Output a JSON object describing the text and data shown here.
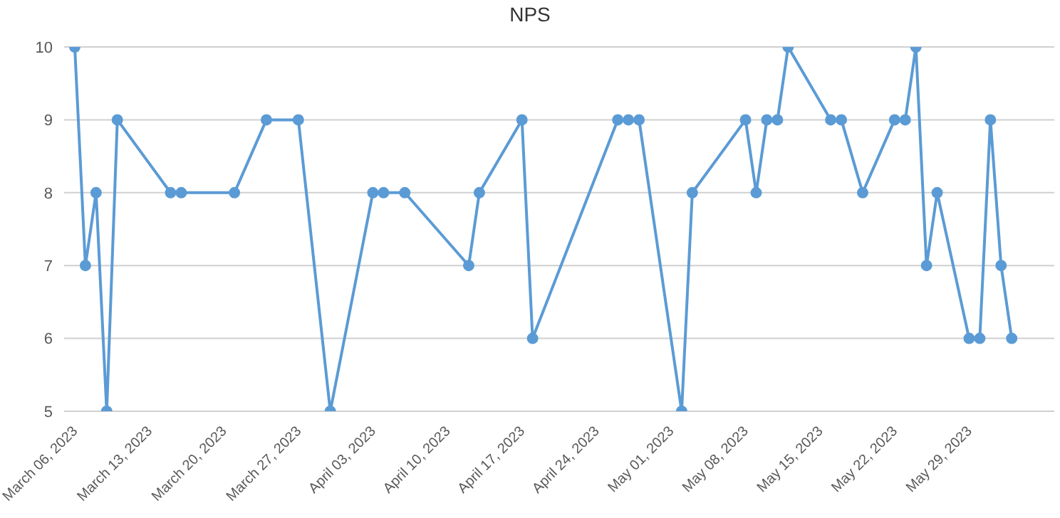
{
  "chart_data": {
    "type": "line",
    "title": "NPS",
    "x": [
      "2023-03-06",
      "2023-03-07",
      "2023-03-08",
      "2023-03-09",
      "2023-03-10",
      "2023-03-15",
      "2023-03-16",
      "2023-03-21",
      "2023-03-24",
      "2023-03-27",
      "2023-03-30",
      "2023-04-03",
      "2023-04-04",
      "2023-04-06",
      "2023-04-12",
      "2023-04-13",
      "2023-04-17",
      "2023-04-18",
      "2023-04-26",
      "2023-04-27",
      "2023-04-28",
      "2023-05-02",
      "2023-05-03",
      "2023-05-08",
      "2023-05-09",
      "2023-05-10",
      "2023-05-11",
      "2023-05-12",
      "2023-05-16",
      "2023-05-17",
      "2023-05-19",
      "2023-05-22",
      "2023-05-23",
      "2023-05-24",
      "2023-05-25",
      "2023-05-26",
      "2023-05-29",
      "2023-05-30",
      "2023-05-31",
      "2023-06-01",
      "2023-06-02"
    ],
    "series": [
      {
        "color": "#5b9bd5",
        "values": [
          10,
          7,
          8,
          5,
          9,
          8,
          8,
          8,
          9,
          9,
          5,
          8,
          8,
          8,
          7,
          8,
          9,
          6,
          9,
          9,
          9,
          5,
          8,
          9,
          8,
          9,
          9,
          10,
          9,
          9,
          8,
          9,
          9,
          10,
          7,
          8,
          6,
          6,
          9,
          7,
          6
        ]
      }
    ],
    "xlim": [
      "2023-03-05",
      "2023-06-06"
    ],
    "xticks": [
      {
        "value": "2023-03-06",
        "label": "March 06, 2023"
      },
      {
        "value": "2023-03-13",
        "label": "March 13, 2023"
      },
      {
        "value": "2023-03-20",
        "label": "March 20, 2023"
      },
      {
        "value": "2023-03-27",
        "label": "March 27, 2023"
      },
      {
        "value": "2023-04-03",
        "label": "April 03, 2023"
      },
      {
        "value": "2023-04-10",
        "label": "April 10, 2023"
      },
      {
        "value": "2023-04-17",
        "label": "April 17, 2023"
      },
      {
        "value": "2023-04-24",
        "label": "April 24, 2023"
      },
      {
        "value": "2023-05-01",
        "label": "May 01, 2023"
      },
      {
        "value": "2023-05-08",
        "label": "May 08, 2023"
      },
      {
        "value": "2023-05-15",
        "label": "May 15, 2023"
      },
      {
        "value": "2023-05-22",
        "label": "May 22, 2023"
      },
      {
        "value": "2023-05-29",
        "label": "May 29, 2023"
      }
    ],
    "ylim": [
      5,
      10
    ],
    "yticks": [
      5,
      6,
      7,
      8,
      9,
      10
    ],
    "grid": "y",
    "legend": false,
    "marker": "circle",
    "line_style": "solid"
  }
}
